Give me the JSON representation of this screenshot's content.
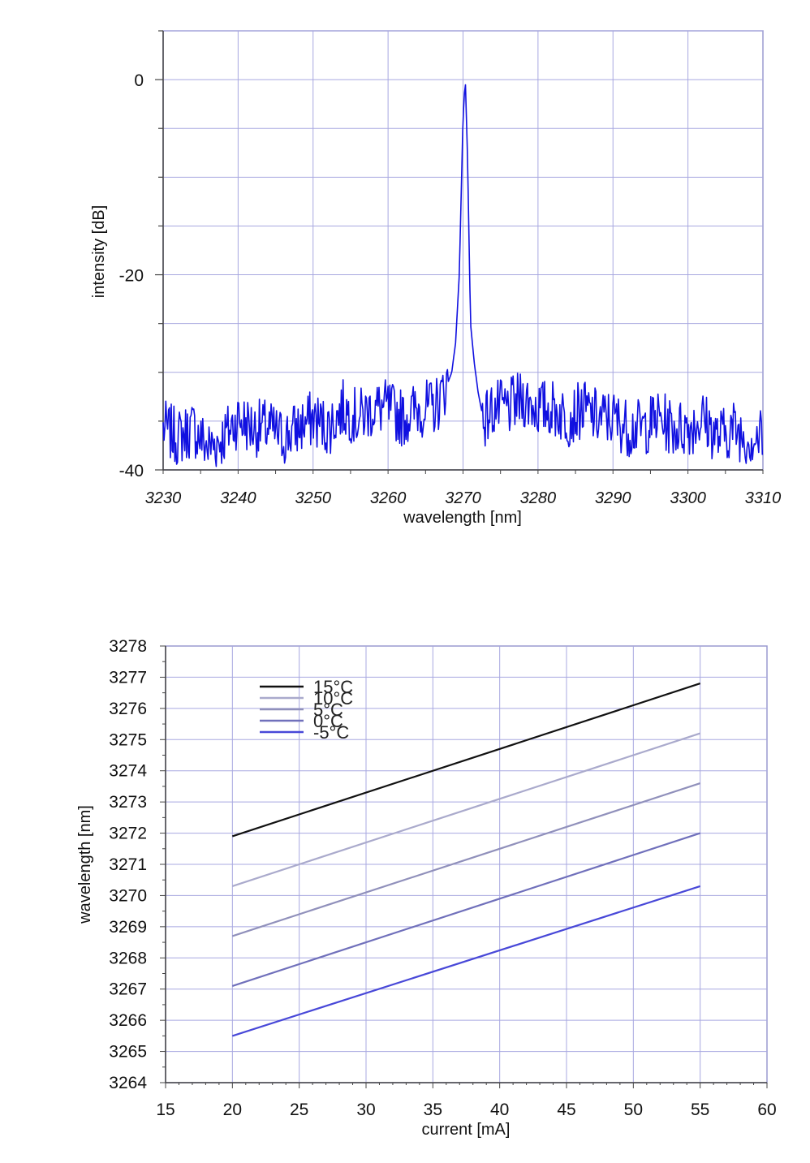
{
  "chart_data": [
    {
      "type": "line",
      "xlabel": "wavelength [nm]",
      "ylabel": "intensity [dB]",
      "xlim": [
        3230,
        3310
      ],
      "ylim": [
        -40,
        5
      ],
      "xticks": [
        "3230",
        "3240",
        "3250",
        "3260",
        "3270",
        "3280",
        "3290",
        "3300",
        "3310"
      ],
      "yticks": [
        "0",
        "-20",
        "-40"
      ],
      "grid": true,
      "line_color": "#1010e0",
      "series": [
        {
          "x": [
            3230,
            3232,
            3234,
            3236,
            3238,
            3240,
            3242,
            3244,
            3246,
            3248,
            3250,
            3252,
            3254,
            3256,
            3258,
            3260,
            3262,
            3264,
            3266,
            3267,
            3268,
            3268.5,
            3269,
            3269.5,
            3270,
            3270.3,
            3270.6,
            3271,
            3271.5,
            3272,
            3272.5,
            3273,
            3274,
            3276,
            3278,
            3280,
            3282,
            3284,
            3286,
            3288,
            3290,
            3292,
            3294,
            3296,
            3298,
            3300,
            3302,
            3304,
            3306,
            3308,
            3310
          ],
          "y": [
            -36,
            -37,
            -36,
            -38,
            -37,
            -35,
            -36,
            -36,
            -37,
            -36,
            -35,
            -36,
            -34,
            -35,
            -34,
            -34,
            -35,
            -34,
            -34,
            -33,
            -31,
            -30,
            -27,
            -20,
            -4,
            0,
            -8,
            -25,
            -29,
            -32,
            -34,
            -35,
            -34,
            -34,
            -33,
            -34,
            -34,
            -35,
            -34,
            -35,
            -35,
            -36,
            -36,
            -35,
            -36,
            -36,
            -35,
            -37,
            -36,
            -37,
            -37
          ]
        }
      ]
    },
    {
      "type": "line",
      "xlabel": "current [mA]",
      "ylabel": "wavelength [nm]",
      "xlim": [
        15,
        60
      ],
      "ylim": [
        3264,
        3278
      ],
      "xticks": [
        "15",
        "20",
        "25",
        "30",
        "35",
        "40",
        "45",
        "50",
        "55",
        "60"
      ],
      "yticks": [
        "3264",
        "3265",
        "3266",
        "3267",
        "3268",
        "3269",
        "3270",
        "3271",
        "3272",
        "3273",
        "3274",
        "3275",
        "3276",
        "3277",
        "3278"
      ],
      "grid": true,
      "legend_position": "top-left",
      "series": [
        {
          "name": "15°C",
          "x": [
            20,
            55
          ],
          "y": [
            3271.9,
            3276.8
          ],
          "color": "#111111"
        },
        {
          "name": "10°C",
          "x": [
            20,
            55
          ],
          "y": [
            3270.3,
            3275.2
          ],
          "color": "#aaaacc"
        },
        {
          "name": "5°C",
          "x": [
            20,
            55
          ],
          "y": [
            3268.7,
            3273.6
          ],
          "color": "#9090bb"
        },
        {
          "name": "0°C",
          "x": [
            20,
            55
          ],
          "y": [
            3267.1,
            3272.0
          ],
          "color": "#7070bb"
        },
        {
          "name": "-5°C",
          "x": [
            20,
            55
          ],
          "y": [
            3265.5,
            3270.3
          ],
          "color": "#4848d8"
        }
      ]
    }
  ]
}
